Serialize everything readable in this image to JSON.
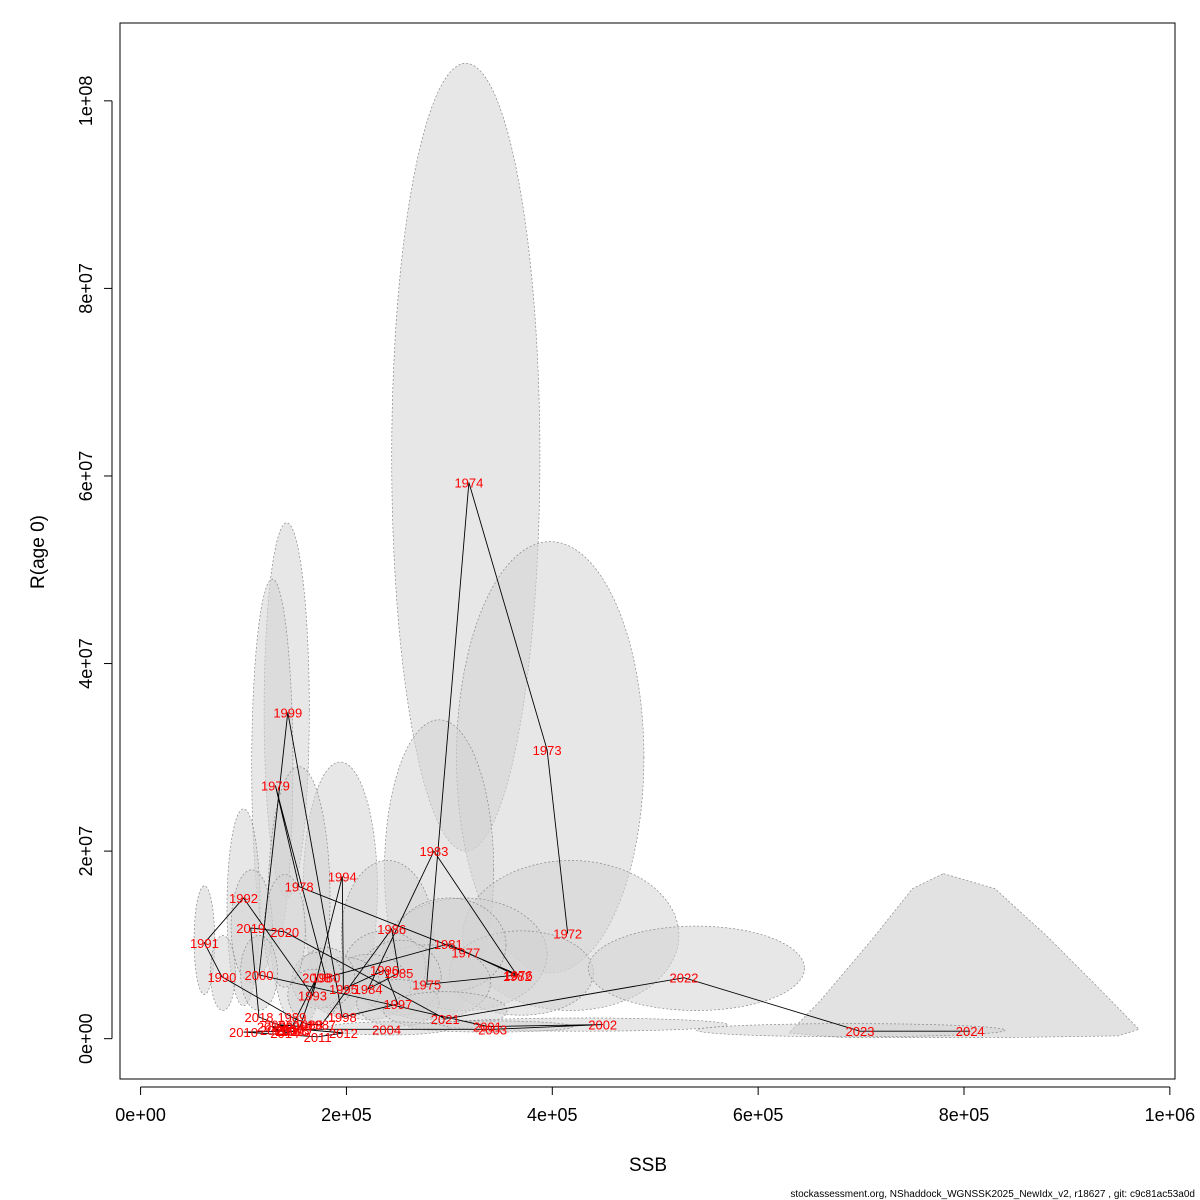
{
  "chart_data": {
    "type": "scatter",
    "xlabel": "SSB",
    "ylabel": "R(age 0)",
    "xlim": [
      -20000,
      1005000
    ],
    "ylim": [
      -4300000,
      108300000
    ],
    "x_ticks": [
      0,
      200000,
      400000,
      600000,
      800000,
      1000000
    ],
    "x_tick_labels": [
      "0e+00",
      "2e+05",
      "4e+05",
      "6e+05",
      "8e+05",
      "1e+06"
    ],
    "y_ticks": [
      0,
      20000000,
      40000000,
      60000000,
      80000000,
      100000000
    ],
    "y_tick_labels": [
      "0e+00",
      "2e+07",
      "4e+07",
      "6e+07",
      "8e+07",
      "1e+08"
    ],
    "grid": false,
    "footer": "stockassessment.org, NShaddock_WGNSSK2025_NewIdx_v2, r18627 , git: c9c81ac53a0d",
    "point_color": "#ff0000",
    "uncertainty_fill": "#d3d3d3",
    "points": [
      {
        "year": "1972",
        "ssb": 415000,
        "r": 11200000
      },
      {
        "year": "1973",
        "ssb": 395000,
        "r": 30800000
      },
      {
        "year": "1974",
        "ssb": 319000,
        "r": 59300000
      },
      {
        "year": "1975",
        "ssb": 278000,
        "r": 5800000
      },
      {
        "year": "1976",
        "ssb": 367000,
        "r": 6800000
      },
      {
        "year": "1977",
        "ssb": 316000,
        "r": 9200000
      },
      {
        "year": "1978",
        "ssb": 154000,
        "r": 16200000
      },
      {
        "year": "1979",
        "ssb": 131000,
        "r": 27000000
      },
      {
        "year": "1980",
        "ssb": 180000,
        "r": 6500000
      },
      {
        "year": "1981",
        "ssb": 299000,
        "r": 10100000
      },
      {
        "year": "1982",
        "ssb": 366000,
        "r": 6700000
      },
      {
        "year": "1983",
        "ssb": 285000,
        "r": 20000000
      },
      {
        "year": "1984",
        "ssb": 221000,
        "r": 5300000
      },
      {
        "year": "1985",
        "ssb": 251000,
        "r": 7000000
      },
      {
        "year": "1986",
        "ssb": 244000,
        "r": 11700000
      },
      {
        "year": "1987",
        "ssb": 176000,
        "r": 1500000
      },
      {
        "year": "1988",
        "ssb": 163000,
        "r": 1500000
      },
      {
        "year": "1989",
        "ssb": 147000,
        "r": 2300000
      },
      {
        "year": "1990",
        "ssb": 79000,
        "r": 6600000
      },
      {
        "year": "1991",
        "ssb": 62000,
        "r": 10200000
      },
      {
        "year": "1992",
        "ssb": 100000,
        "r": 15000000
      },
      {
        "year": "1993",
        "ssb": 167000,
        "r": 4600000
      },
      {
        "year": "1994",
        "ssb": 196000,
        "r": 17300000
      },
      {
        "year": "1995",
        "ssb": 197000,
        "r": 5300000
      },
      {
        "year": "1996",
        "ssb": 237000,
        "r": 7300000
      },
      {
        "year": "1997",
        "ssb": 250000,
        "r": 3700000
      },
      {
        "year": "1998",
        "ssb": 196000,
        "r": 2300000
      },
      {
        "year": "1999",
        "ssb": 143000,
        "r": 34800000
      },
      {
        "year": "2000",
        "ssb": 115000,
        "r": 6800000
      },
      {
        "year": "2001",
        "ssb": 337000,
        "r": 1300000
      },
      {
        "year": "2002",
        "ssb": 449000,
        "r": 1500000
      },
      {
        "year": "2003",
        "ssb": 342000,
        "r": 1000000
      },
      {
        "year": "2004",
        "ssb": 239000,
        "r": 1000000
      },
      {
        "year": "2005",
        "ssb": 152000,
        "r": 1000000
      },
      {
        "year": "2006",
        "ssb": 134000,
        "r": 1500000
      },
      {
        "year": "2007",
        "ssb": 155000,
        "r": 1300000
      },
      {
        "year": "2008",
        "ssb": 171000,
        "r": 6500000
      },
      {
        "year": "2009",
        "ssb": 145000,
        "r": 800000
      },
      {
        "year": "2010",
        "ssb": 100000,
        "r": 700000
      },
      {
        "year": "2011",
        "ssb": 172000,
        "r": 200000
      },
      {
        "year": "2012",
        "ssb": 197000,
        "r": 600000
      },
      {
        "year": "2013",
        "ssb": 127000,
        "r": 1300000
      },
      {
        "year": "2014",
        "ssb": 140000,
        "r": 600000
      },
      {
        "year": "2015",
        "ssb": 150000,
        "r": 800000
      },
      {
        "year": "2016",
        "ssb": 130000,
        "r": 900000
      },
      {
        "year": "2017",
        "ssb": 145000,
        "r": 1000000
      },
      {
        "year": "2018",
        "ssb": 115000,
        "r": 2300000
      },
      {
        "year": "2019",
        "ssb": 107000,
        "r": 11800000
      },
      {
        "year": "2020",
        "ssb": 140000,
        "r": 11400000
      },
      {
        "year": "2021",
        "ssb": 296000,
        "r": 2100000
      },
      {
        "year": "2022",
        "ssb": 528000,
        "r": 6500000
      },
      {
        "year": "2023",
        "ssb": 699000,
        "r": 800000
      },
      {
        "year": "2024",
        "ssb": 806000,
        "r": 800000
      }
    ],
    "path_order": [
      "1972",
      "1973",
      "1974",
      "1975",
      "1976",
      "1977",
      "1978",
      "1979",
      "1980",
      "1981",
      "1982",
      "1983",
      "1984",
      "1985",
      "1986",
      "1987",
      "1988",
      "1989",
      "1990",
      "1991",
      "1992",
      "1993",
      "1994",
      "1995",
      "1996",
      "1997",
      "1998",
      "1999",
      "2000",
      "2001",
      "2002",
      "2003",
      "2004",
      "2005",
      "2006",
      "2007",
      "2008",
      "2009",
      "2010",
      "2011",
      "2012",
      "2013",
      "2014",
      "2015",
      "2016",
      "2017",
      "2018",
      "2019",
      "2020",
      "2021",
      "2022",
      "2023",
      "2024"
    ],
    "uncertainty_regions": [
      {
        "year": "1974",
        "x_min": 316000,
        "x_max": 315000,
        "cx": 316000,
        "cy": 62000000,
        "rx": 72000,
        "ry": 42000000
      },
      {
        "year": "1973",
        "cx": 398000,
        "cy": 30000000,
        "rx": 91000,
        "ry": 23000000
      },
      {
        "year": "1999",
        "cx": 142000,
        "cy": 35000000,
        "rx": 22000,
        "ry": 20000000
      },
      {
        "year": "1979",
        "cx": 128000,
        "cy": 29000000,
        "rx": 20000,
        "ry": 20000000
      },
      {
        "year": "1983",
        "cx": 290000,
        "cy": 18000000,
        "rx": 53000,
        "ry": 16000000
      },
      {
        "year": "1994",
        "cx": 194000,
        "cy": 16000000,
        "rx": 36000,
        "ry": 13500000
      },
      {
        "year": "1978",
        "cx": 154000,
        "cy": 15000000,
        "rx": 30000,
        "ry": 14000000
      },
      {
        "year": "1992",
        "cx": 100000,
        "cy": 14000000,
        "rx": 16000,
        "ry": 10500000
      },
      {
        "year": "1991",
        "cx": 62000,
        "cy": 10500000,
        "rx": 10000,
        "ry": 5800000
      },
      {
        "year": "1990",
        "cx": 80000,
        "cy": 7000000,
        "rx": 12000,
        "ry": 4000000
      },
      {
        "year": "1986",
        "cx": 240000,
        "cy": 11000000,
        "rx": 45000,
        "ry": 8000000
      },
      {
        "year": "1972",
        "cx": 418000,
        "cy": 11000000,
        "rx": 105000,
        "ry": 8000000
      },
      {
        "year": "1977",
        "cx": 315000,
        "cy": 9000000,
        "rx": 80000,
        "ry": 6000000
      },
      {
        "year": "1976",
        "cx": 370000,
        "cy": 7000000,
        "rx": 70000,
        "ry": 4500000
      },
      {
        "year": "1981",
        "cx": 300000,
        "cy": 10000000,
        "rx": 55000,
        "ry": 5000000
      },
      {
        "year": "2022",
        "cx": 540000,
        "cy": 7500000,
        "rx": 105000,
        "ry": 4500000
      },
      {
        "year": "1975",
        "cx": 280000,
        "cy": 6000000,
        "rx": 60000,
        "ry": 4000000
      },
      {
        "year": "1996",
        "cx": 237000,
        "cy": 7500000,
        "rx": 40000,
        "ry": 4000000
      },
      {
        "year": "1985",
        "cx": 252000,
        "cy": 6500000,
        "rx": 40000,
        "ry": 4000000
      },
      {
        "year": "1984",
        "cx": 222000,
        "cy": 5500000,
        "rx": 40000,
        "ry": 3500000
      },
      {
        "year": "1995",
        "cx": 198000,
        "cy": 5500000,
        "rx": 35000,
        "ry": 3200000
      },
      {
        "year": "1980",
        "cx": 180000,
        "cy": 6500000,
        "rx": 28000,
        "ry": 3200000
      },
      {
        "year": "2008",
        "cx": 172000,
        "cy": 6200000,
        "rx": 25000,
        "ry": 3000000
      },
      {
        "year": "1993",
        "cx": 168000,
        "cy": 4600000,
        "rx": 25000,
        "ry": 2800000
      },
      {
        "year": "1997",
        "cx": 250000,
        "cy": 3800000,
        "rx": 40000,
        "ry": 2500000
      },
      {
        "year": "2021",
        "cx": 296000,
        "cy": 3000000,
        "rx": 60000,
        "ry": 2000000
      },
      {
        "year": "2019",
        "cx": 108000,
        "cy": 12000000,
        "rx": 20000,
        "ry": 6000000
      },
      {
        "year": "2020",
        "cx": 140000,
        "cy": 11500000,
        "rx": 20000,
        "ry": 6000000
      },
      {
        "year": "2000",
        "cx": 115000,
        "cy": 7000000,
        "rx": 18000,
        "ry": 4000000
      },
      {
        "year": "2002",
        "cx": 430000,
        "cy": 1500000,
        "rx": 140000,
        "ry": 700000
      },
      {
        "year": "2001",
        "cx": 340000,
        "cy": 1300000,
        "rx": 80000,
        "ry": 600000
      },
      {
        "year": "2004",
        "cx": 240000,
        "cy": 1100000,
        "rx": 60000,
        "ry": 700000
      },
      {
        "year": "2023",
        "cx": 690000,
        "cy": 900000,
        "rx": 150000,
        "ry": 700000
      },
      {
        "year": "2024",
        "cx": 780000,
        "cy": 900000,
        "rx": 105000,
        "ry": 600000
      }
    ],
    "uncertainty_hull_2024_outline": [
      [
        780000,
        17600000
      ],
      [
        830000,
        16000000
      ],
      [
        880000,
        11000000
      ],
      [
        930000,
        5500000
      ],
      [
        970000,
        1000000
      ],
      [
        950000,
        300000
      ],
      [
        860000,
        150000
      ],
      [
        760000,
        100000
      ],
      [
        680000,
        150000
      ],
      [
        630000,
        600000
      ],
      [
        660000,
        4000000
      ],
      [
        710000,
        10500000
      ],
      [
        750000,
        16000000
      ]
    ]
  }
}
